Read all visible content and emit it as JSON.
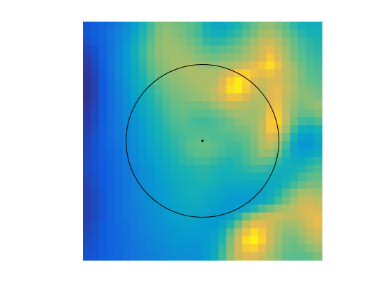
{
  "chart_data": {
    "type": "heatmap",
    "title": "",
    "xlabel": "",
    "ylabel": "",
    "colormap": "parula",
    "axes_visible": false,
    "grid": false,
    "legend": "none",
    "rows": 30,
    "cols": 30,
    "value_range": [
      0,
      1
    ],
    "values": [
      [
        0.1,
        0.13,
        0.16,
        0.2,
        0.25,
        0.32,
        0.4,
        0.5,
        0.58,
        0.67,
        0.7,
        0.68,
        0.66,
        0.62,
        0.58,
        0.5,
        0.45,
        0.44,
        0.48,
        0.52,
        0.58,
        0.64,
        0.7,
        0.72,
        0.68,
        0.62,
        0.55,
        0.5,
        0.48,
        0.48
      ],
      [
        0.11,
        0.14,
        0.17,
        0.22,
        0.27,
        0.34,
        0.42,
        0.52,
        0.6,
        0.69,
        0.72,
        0.7,
        0.67,
        0.63,
        0.58,
        0.52,
        0.48,
        0.48,
        0.52,
        0.56,
        0.62,
        0.68,
        0.74,
        0.76,
        0.72,
        0.66,
        0.6,
        0.54,
        0.5,
        0.5
      ],
      [
        0.09,
        0.12,
        0.16,
        0.22,
        0.28,
        0.36,
        0.45,
        0.54,
        0.62,
        0.7,
        0.73,
        0.72,
        0.7,
        0.66,
        0.62,
        0.56,
        0.54,
        0.55,
        0.58,
        0.62,
        0.68,
        0.74,
        0.8,
        0.82,
        0.78,
        0.7,
        0.64,
        0.58,
        0.54,
        0.52
      ],
      [
        0.07,
        0.1,
        0.15,
        0.22,
        0.3,
        0.38,
        0.47,
        0.56,
        0.64,
        0.71,
        0.74,
        0.74,
        0.72,
        0.7,
        0.66,
        0.62,
        0.6,
        0.62,
        0.64,
        0.68,
        0.72,
        0.78,
        0.84,
        0.88,
        0.82,
        0.74,
        0.66,
        0.6,
        0.56,
        0.54
      ],
      [
        0.05,
        0.09,
        0.15,
        0.22,
        0.3,
        0.38,
        0.47,
        0.56,
        0.64,
        0.7,
        0.73,
        0.74,
        0.74,
        0.72,
        0.7,
        0.68,
        0.66,
        0.68,
        0.7,
        0.72,
        0.76,
        0.8,
        0.86,
        0.92,
        0.86,
        0.76,
        0.68,
        0.62,
        0.58,
        0.56
      ],
      [
        0.04,
        0.08,
        0.14,
        0.22,
        0.3,
        0.38,
        0.46,
        0.54,
        0.62,
        0.68,
        0.72,
        0.74,
        0.76,
        0.76,
        0.74,
        0.72,
        0.72,
        0.74,
        0.76,
        0.8,
        0.84,
        0.88,
        0.92,
        0.96,
        0.9,
        0.8,
        0.72,
        0.66,
        0.6,
        0.58
      ],
      [
        0.03,
        0.07,
        0.13,
        0.21,
        0.29,
        0.37,
        0.45,
        0.52,
        0.6,
        0.66,
        0.7,
        0.72,
        0.74,
        0.76,
        0.76,
        0.76,
        0.76,
        0.8,
        0.86,
        0.92,
        0.94,
        0.9,
        0.88,
        0.9,
        0.86,
        0.8,
        0.74,
        0.68,
        0.62,
        0.6
      ],
      [
        0.02,
        0.06,
        0.12,
        0.2,
        0.28,
        0.36,
        0.44,
        0.5,
        0.57,
        0.63,
        0.68,
        0.7,
        0.72,
        0.74,
        0.76,
        0.76,
        0.78,
        0.86,
        0.94,
        0.98,
        0.94,
        0.86,
        0.82,
        0.86,
        0.86,
        0.8,
        0.74,
        0.68,
        0.64,
        0.62
      ],
      [
        0.02,
        0.06,
        0.12,
        0.2,
        0.27,
        0.34,
        0.42,
        0.48,
        0.54,
        0.6,
        0.65,
        0.68,
        0.7,
        0.72,
        0.74,
        0.76,
        0.8,
        0.88,
        0.96,
        0.98,
        0.92,
        0.84,
        0.8,
        0.86,
        0.88,
        0.82,
        0.76,
        0.7,
        0.68,
        0.66
      ],
      [
        0.02,
        0.06,
        0.12,
        0.19,
        0.26,
        0.33,
        0.4,
        0.46,
        0.52,
        0.57,
        0.62,
        0.66,
        0.68,
        0.7,
        0.72,
        0.74,
        0.78,
        0.84,
        0.9,
        0.9,
        0.86,
        0.8,
        0.78,
        0.86,
        0.88,
        0.8,
        0.74,
        0.7,
        0.7,
        0.68
      ],
      [
        0.03,
        0.07,
        0.12,
        0.19,
        0.25,
        0.32,
        0.38,
        0.44,
        0.5,
        0.55,
        0.6,
        0.64,
        0.66,
        0.66,
        0.66,
        0.68,
        0.72,
        0.76,
        0.8,
        0.8,
        0.78,
        0.76,
        0.78,
        0.88,
        0.9,
        0.8,
        0.72,
        0.68,
        0.7,
        0.72
      ],
      [
        0.04,
        0.08,
        0.13,
        0.19,
        0.25,
        0.31,
        0.37,
        0.42,
        0.48,
        0.53,
        0.58,
        0.62,
        0.64,
        0.62,
        0.62,
        0.62,
        0.64,
        0.68,
        0.72,
        0.74,
        0.74,
        0.74,
        0.78,
        0.9,
        0.92,
        0.8,
        0.7,
        0.64,
        0.64,
        0.68
      ],
      [
        0.04,
        0.08,
        0.13,
        0.19,
        0.24,
        0.3,
        0.35,
        0.4,
        0.46,
        0.51,
        0.56,
        0.6,
        0.62,
        0.6,
        0.58,
        0.58,
        0.6,
        0.62,
        0.66,
        0.7,
        0.72,
        0.74,
        0.8,
        0.92,
        0.94,
        0.8,
        0.66,
        0.58,
        0.56,
        0.6
      ],
      [
        0.05,
        0.09,
        0.14,
        0.19,
        0.24,
        0.29,
        0.34,
        0.39,
        0.44,
        0.49,
        0.54,
        0.58,
        0.6,
        0.6,
        0.6,
        0.6,
        0.6,
        0.62,
        0.64,
        0.66,
        0.68,
        0.72,
        0.8,
        0.92,
        0.9,
        0.74,
        0.58,
        0.48,
        0.46,
        0.5
      ],
      [
        0.06,
        0.1,
        0.14,
        0.19,
        0.23,
        0.28,
        0.33,
        0.38,
        0.43,
        0.48,
        0.52,
        0.56,
        0.58,
        0.6,
        0.62,
        0.62,
        0.6,
        0.6,
        0.6,
        0.62,
        0.64,
        0.7,
        0.78,
        0.86,
        0.82,
        0.66,
        0.5,
        0.4,
        0.38,
        0.44
      ],
      [
        0.07,
        0.1,
        0.14,
        0.18,
        0.22,
        0.27,
        0.32,
        0.37,
        0.42,
        0.46,
        0.5,
        0.54,
        0.58,
        0.62,
        0.64,
        0.64,
        0.62,
        0.6,
        0.58,
        0.58,
        0.62,
        0.68,
        0.76,
        0.8,
        0.74,
        0.58,
        0.44,
        0.36,
        0.36,
        0.42
      ],
      [
        0.07,
        0.1,
        0.13,
        0.17,
        0.21,
        0.26,
        0.31,
        0.36,
        0.4,
        0.44,
        0.48,
        0.52,
        0.56,
        0.6,
        0.62,
        0.62,
        0.6,
        0.58,
        0.56,
        0.56,
        0.6,
        0.66,
        0.72,
        0.72,
        0.66,
        0.54,
        0.44,
        0.4,
        0.42,
        0.46
      ],
      [
        0.08,
        0.1,
        0.13,
        0.16,
        0.2,
        0.25,
        0.3,
        0.34,
        0.38,
        0.42,
        0.46,
        0.5,
        0.54,
        0.56,
        0.58,
        0.58,
        0.56,
        0.54,
        0.52,
        0.54,
        0.58,
        0.62,
        0.64,
        0.62,
        0.56,
        0.5,
        0.46,
        0.46,
        0.5,
        0.54
      ],
      [
        0.08,
        0.1,
        0.12,
        0.16,
        0.2,
        0.24,
        0.28,
        0.32,
        0.36,
        0.4,
        0.44,
        0.48,
        0.5,
        0.52,
        0.54,
        0.54,
        0.52,
        0.5,
        0.5,
        0.52,
        0.54,
        0.56,
        0.56,
        0.54,
        0.5,
        0.48,
        0.48,
        0.52,
        0.56,
        0.6
      ],
      [
        0.07,
        0.09,
        0.12,
        0.15,
        0.19,
        0.23,
        0.27,
        0.31,
        0.35,
        0.39,
        0.42,
        0.46,
        0.48,
        0.5,
        0.52,
        0.52,
        0.5,
        0.48,
        0.48,
        0.48,
        0.5,
        0.5,
        0.5,
        0.48,
        0.46,
        0.48,
        0.52,
        0.58,
        0.62,
        0.64
      ],
      [
        0.06,
        0.09,
        0.12,
        0.15,
        0.19,
        0.23,
        0.27,
        0.31,
        0.34,
        0.38,
        0.41,
        0.44,
        0.47,
        0.49,
        0.5,
        0.5,
        0.48,
        0.46,
        0.44,
        0.44,
        0.44,
        0.44,
        0.44,
        0.44,
        0.46,
        0.52,
        0.58,
        0.64,
        0.68,
        0.68
      ],
      [
        0.05,
        0.08,
        0.11,
        0.15,
        0.19,
        0.23,
        0.27,
        0.31,
        0.34,
        0.37,
        0.4,
        0.43,
        0.46,
        0.48,
        0.48,
        0.46,
        0.44,
        0.42,
        0.4,
        0.4,
        0.4,
        0.4,
        0.42,
        0.46,
        0.52,
        0.6,
        0.68,
        0.74,
        0.76,
        0.74
      ],
      [
        0.05,
        0.08,
        0.11,
        0.15,
        0.19,
        0.23,
        0.27,
        0.3,
        0.33,
        0.36,
        0.39,
        0.42,
        0.45,
        0.46,
        0.46,
        0.44,
        0.42,
        0.4,
        0.38,
        0.38,
        0.38,
        0.4,
        0.44,
        0.5,
        0.58,
        0.66,
        0.74,
        0.8,
        0.82,
        0.8
      ],
      [
        0.05,
        0.08,
        0.11,
        0.15,
        0.19,
        0.23,
        0.26,
        0.29,
        0.32,
        0.35,
        0.38,
        0.41,
        0.43,
        0.44,
        0.44,
        0.42,
        0.4,
        0.38,
        0.38,
        0.4,
        0.44,
        0.52,
        0.6,
        0.66,
        0.72,
        0.76,
        0.8,
        0.84,
        0.86,
        0.84
      ],
      [
        0.05,
        0.08,
        0.11,
        0.15,
        0.19,
        0.22,
        0.25,
        0.28,
        0.31,
        0.34,
        0.37,
        0.4,
        0.42,
        0.42,
        0.42,
        0.4,
        0.38,
        0.38,
        0.42,
        0.52,
        0.64,
        0.74,
        0.8,
        0.82,
        0.82,
        0.8,
        0.8,
        0.82,
        0.86,
        0.88
      ],
      [
        0.06,
        0.09,
        0.12,
        0.15,
        0.18,
        0.21,
        0.24,
        0.27,
        0.3,
        0.33,
        0.36,
        0.38,
        0.4,
        0.4,
        0.4,
        0.38,
        0.38,
        0.42,
        0.52,
        0.66,
        0.8,
        0.88,
        0.88,
        0.84,
        0.78,
        0.74,
        0.74,
        0.78,
        0.84,
        0.88
      ],
      [
        0.07,
        0.09,
        0.12,
        0.15,
        0.18,
        0.21,
        0.24,
        0.27,
        0.29,
        0.32,
        0.34,
        0.36,
        0.38,
        0.38,
        0.38,
        0.38,
        0.4,
        0.48,
        0.62,
        0.78,
        0.9,
        0.96,
        0.92,
        0.84,
        0.76,
        0.7,
        0.7,
        0.74,
        0.8,
        0.84
      ],
      [
        0.08,
        0.1,
        0.12,
        0.15,
        0.18,
        0.2,
        0.23,
        0.26,
        0.28,
        0.31,
        0.33,
        0.35,
        0.36,
        0.36,
        0.36,
        0.38,
        0.42,
        0.52,
        0.68,
        0.84,
        0.96,
        0.99,
        0.94,
        0.84,
        0.74,
        0.68,
        0.66,
        0.7,
        0.76,
        0.8
      ],
      [
        0.09,
        0.1,
        0.12,
        0.15,
        0.17,
        0.2,
        0.22,
        0.25,
        0.27,
        0.29,
        0.31,
        0.33,
        0.34,
        0.34,
        0.34,
        0.38,
        0.44,
        0.56,
        0.7,
        0.84,
        0.92,
        0.94,
        0.88,
        0.8,
        0.72,
        0.66,
        0.64,
        0.66,
        0.7,
        0.74
      ],
      [
        0.1,
        0.11,
        0.13,
        0.15,
        0.17,
        0.19,
        0.22,
        0.24,
        0.26,
        0.28,
        0.3,
        0.32,
        0.32,
        0.32,
        0.34,
        0.38,
        0.46,
        0.58,
        0.72,
        0.82,
        0.86,
        0.86,
        0.82,
        0.76,
        0.7,
        0.64,
        0.62,
        0.62,
        0.64,
        0.68
      ]
    ],
    "annotations": [
      {
        "type": "circle",
        "center_cell": [
          14.5,
          14.5
        ],
        "radius_cells": 9.6,
        "stroke": "#000000"
      },
      {
        "type": "point",
        "center_cell": [
          14.5,
          14.5
        ],
        "color": "#000000"
      }
    ]
  }
}
